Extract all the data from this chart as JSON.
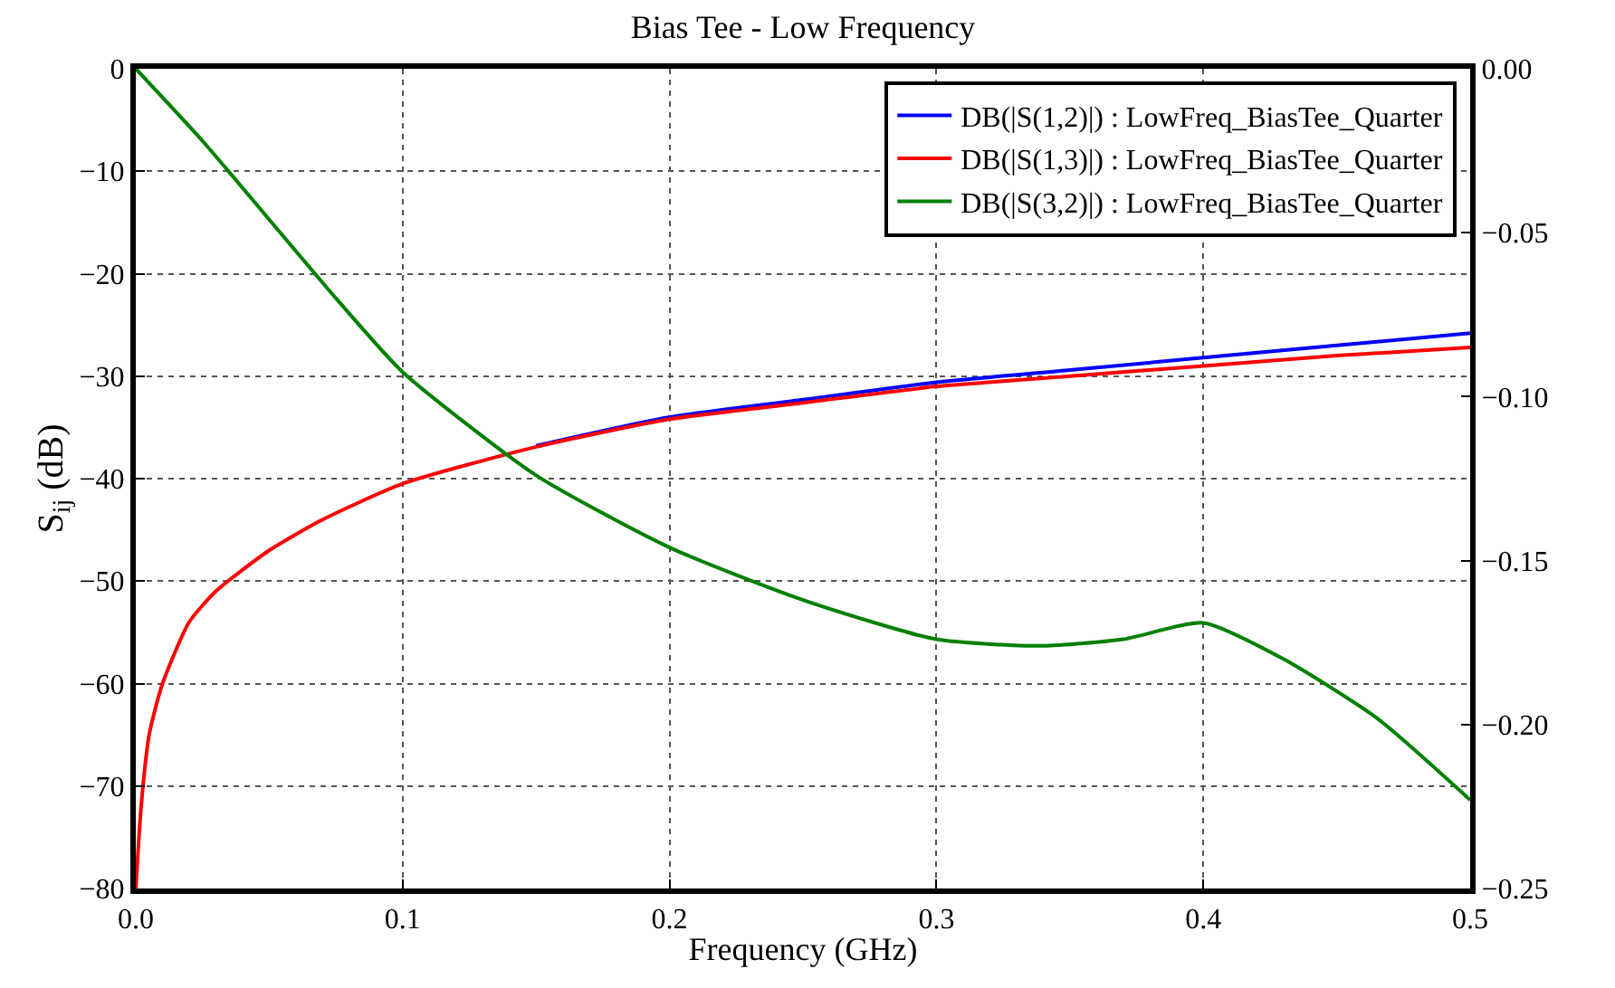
{
  "chart_data": {
    "type": "line",
    "title": "Bias Tee - Low Frequency",
    "xlabel": "Frequency (GHz)",
    "ylabel": "S$_{ij}$ (dB)",
    "xlim": [
      0,
      0.5
    ],
    "xticks": [
      {
        "value": 0,
        "label": "0.0"
      },
      0.1,
      0.2,
      0.3,
      0.4,
      0.5
    ],
    "ylim": [
      -80,
      0
    ],
    "yticks": [
      {
        "value": -80,
        "label": "−80"
      },
      {
        "value": -70,
        "label": "−70"
      },
      {
        "value": -60,
        "label": "−60"
      },
      {
        "value": -50,
        "label": "−50"
      },
      {
        "value": -40,
        "label": "−40"
      },
      {
        "value": -30,
        "label": "−30"
      },
      {
        "value": -20,
        "label": "−20"
      },
      {
        "value": -10,
        "label": "−10"
      },
      0
    ],
    "y2lim": [
      -0.25,
      0
    ],
    "y2ticks": [
      {
        "value": -0.25,
        "label": "−0.25"
      },
      {
        "value": -0.2,
        "label": "−0.20"
      },
      {
        "value": -0.15,
        "label": "−0.15"
      },
      {
        "value": -0.1,
        "label": "−0.10"
      },
      {
        "value": -0.05,
        "label": "−0.05"
      },
      {
        "value": 0,
        "label": "0.00"
      }
    ],
    "grid": true,
    "legend": "top right",
    "line_style": "solid",
    "marker": "none",
    "series": [
      {
        "name": "DB(|S(1,2)|) : LowFreq_BiasTee_Quarter",
        "color": "#0000ff",
        "x": [
          0.15,
          0.2,
          0.25,
          0.3,
          0.35,
          0.4,
          0.45,
          0.5
        ],
        "values": [
          -36.8,
          -34,
          -32.3,
          -30.6,
          -29.4,
          -28.2,
          -27,
          -25.8
        ]
      },
      {
        "name": "DB(|S(1,3)|) : LowFreq_BiasTee_Quarter",
        "color": "#ff0000",
        "x": [
          0,
          0.002,
          0.005,
          0.01,
          0.02,
          0.03,
          0.05,
          0.07,
          0.1,
          0.15,
          0.2,
          0.25,
          0.3,
          0.35,
          0.4,
          0.45,
          0.5
        ],
        "values": [
          -80,
          -72,
          -65,
          -60,
          -54,
          -51,
          -47,
          -44,
          -40.5,
          -36.9,
          -34.2,
          -32.6,
          -31,
          -30,
          -29,
          -28,
          -27.2
        ]
      },
      {
        "name": "DB(|S(3,2)|) : LowFreq_BiasTee_Quarter",
        "color": "#008000",
        "axis": "y2",
        "x": [
          0,
          0.025,
          0.05,
          0.075,
          0.1,
          0.15,
          0.2,
          0.25,
          0.3,
          0.34,
          0.37,
          0.4,
          0.43,
          0.465,
          0.5
        ],
        "values": [
          0,
          -0.022,
          -0.046,
          -0.07,
          -0.0925,
          -0.124,
          -0.146,
          -0.162,
          -0.174,
          -0.176,
          -0.174,
          -0.169,
          -0.18,
          -0.198,
          -0.223
        ]
      }
    ]
  }
}
